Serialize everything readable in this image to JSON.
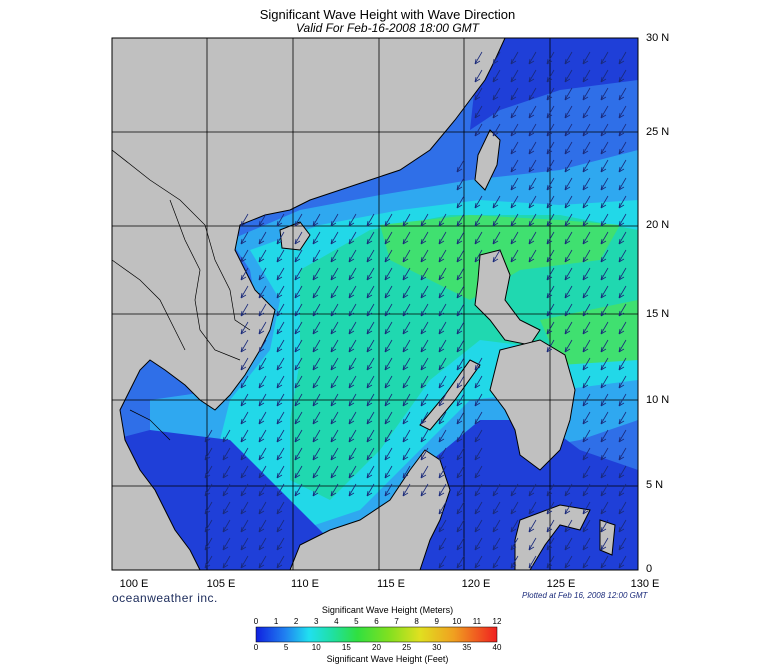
{
  "title": "Significant Wave Height with Wave Direction",
  "subtitle": "Valid For Feb-16-2008 18:00 GMT",
  "lat_labels": [
    "30 N",
    "25 N",
    "20 N",
    "15 N",
    "10 N",
    "5 N",
    "0"
  ],
  "lon_labels": [
    "100 E",
    "105 E",
    "110 E",
    "115 E",
    "120 E",
    "125 E",
    "130 E"
  ],
  "credit": "oceanweather inc.",
  "plotted_note": "Plotted at Feb 16, 2008 12:00 GMT",
  "legend": {
    "title_top": "Significant Wave Height (Meters)",
    "meters_ticks": [
      "0",
      "1",
      "2",
      "3",
      "4",
      "5",
      "6",
      "7",
      "8",
      "9",
      "10",
      "11",
      "12"
    ],
    "feet_ticks": [
      "0",
      "5",
      "10",
      "15",
      "20",
      "25",
      "30",
      "35",
      "40"
    ],
    "title_bottom": "Significant Wave Height (Feet)"
  },
  "colors": {
    "land": "#c0c0c0",
    "deep_blue": "#1f3fd8",
    "blue": "#2f6fe8",
    "light_blue": "#2fa8f0",
    "cyan": "#20e0e8",
    "teal": "#20d8b0",
    "green": "#40e070",
    "arrow": "#1a2a7a",
    "grid": "#000000"
  },
  "wave_direction": "northeast-to-southwest"
}
